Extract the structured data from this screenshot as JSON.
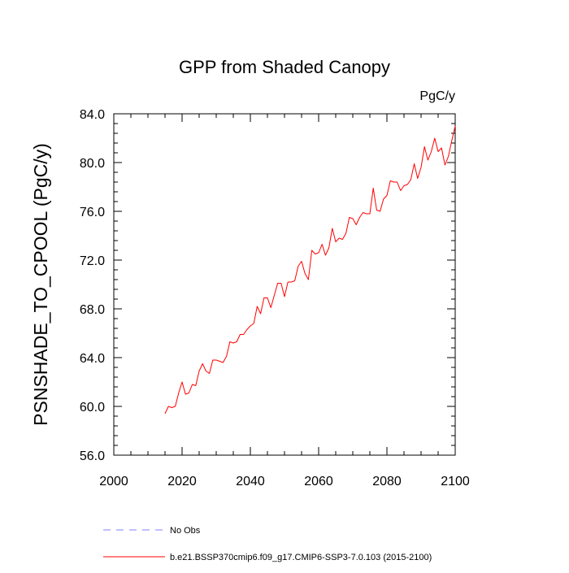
{
  "chart_data": {
    "type": "line",
    "title": "GPP from Shaded Canopy",
    "units_label": "PgC/y",
    "ylabel": "PSNSHADE_TO_CPOOL  (PgC/y)",
    "xlabel": "",
    "xlim": [
      2000,
      2100
    ],
    "ylim": [
      56.0,
      84.0
    ],
    "x_ticks": [
      "2000",
      "2020",
      "2040",
      "2060",
      "2080",
      "2100"
    ],
    "y_ticks": [
      "56.0",
      "60.0",
      "64.0",
      "68.0",
      "72.0",
      "76.0",
      "80.0",
      "84.0"
    ],
    "series": [
      {
        "name": "b.e21.BSSP370cmip6.f09_g17.CMIP6-SSP3-7.0.103 (2015-2100)",
        "color": "#ff0000",
        "style": "solid",
        "x": [
          2015,
          2016,
          2017,
          2018,
          2019,
          2020,
          2021,
          2022,
          2023,
          2024,
          2025,
          2026,
          2027,
          2028,
          2029,
          2030,
          2031,
          2032,
          2033,
          2034,
          2035,
          2036,
          2037,
          2038,
          2039,
          2040,
          2041,
          2042,
          2043,
          2044,
          2045,
          2046,
          2047,
          2048,
          2049,
          2050,
          2051,
          2052,
          2053,
          2054,
          2055,
          2056,
          2057,
          2058,
          2059,
          2060,
          2061,
          2062,
          2063,
          2064,
          2065,
          2066,
          2067,
          2068,
          2069,
          2070,
          2071,
          2072,
          2073,
          2074,
          2075,
          2076,
          2077,
          2078,
          2079,
          2080,
          2081,
          2082,
          2083,
          2084,
          2085,
          2086,
          2087,
          2088,
          2089,
          2090,
          2091,
          2092,
          2093,
          2094,
          2095,
          2096,
          2097,
          2098,
          2099,
          2100
        ],
        "y": [
          59.4,
          60.0,
          59.9,
          60.0,
          61.1,
          62.0,
          61.0,
          61.1,
          61.8,
          61.7,
          62.9,
          63.5,
          62.9,
          62.7,
          63.8,
          63.8,
          63.7,
          63.6,
          64.1,
          65.3,
          65.2,
          65.3,
          65.9,
          65.9,
          66.3,
          66.6,
          66.8,
          68.2,
          67.6,
          68.9,
          68.9,
          68.1,
          69.1,
          70.1,
          70.1,
          69.0,
          70.2,
          70.2,
          70.3,
          71.5,
          71.9,
          70.9,
          70.4,
          72.8,
          72.5,
          72.6,
          73.3,
          72.4,
          73.0,
          74.6,
          73.5,
          73.8,
          73.7,
          74.2,
          75.5,
          75.4,
          74.9,
          75.5,
          75.9,
          75.8,
          75.8,
          77.9,
          76.1,
          76.0,
          77.0,
          77.3,
          78.5,
          78.4,
          78.4,
          77.7,
          78.1,
          78.2,
          78.6,
          79.9,
          78.7,
          79.6,
          81.3,
          80.2,
          80.9,
          82.0,
          80.9,
          81.2,
          79.8,
          80.5,
          81.8,
          83.0
        ]
      }
    ],
    "legend": [
      {
        "label": "No Obs",
        "color": "#8080ff",
        "style": "dashed"
      },
      {
        "label": "b.e21.BSSP370cmip6.f09_g17.CMIP6-SSP3-7.0.103 (2015-2100)",
        "color": "#ff0000",
        "style": "solid"
      }
    ],
    "grid": false,
    "legend_position": "bottom"
  }
}
